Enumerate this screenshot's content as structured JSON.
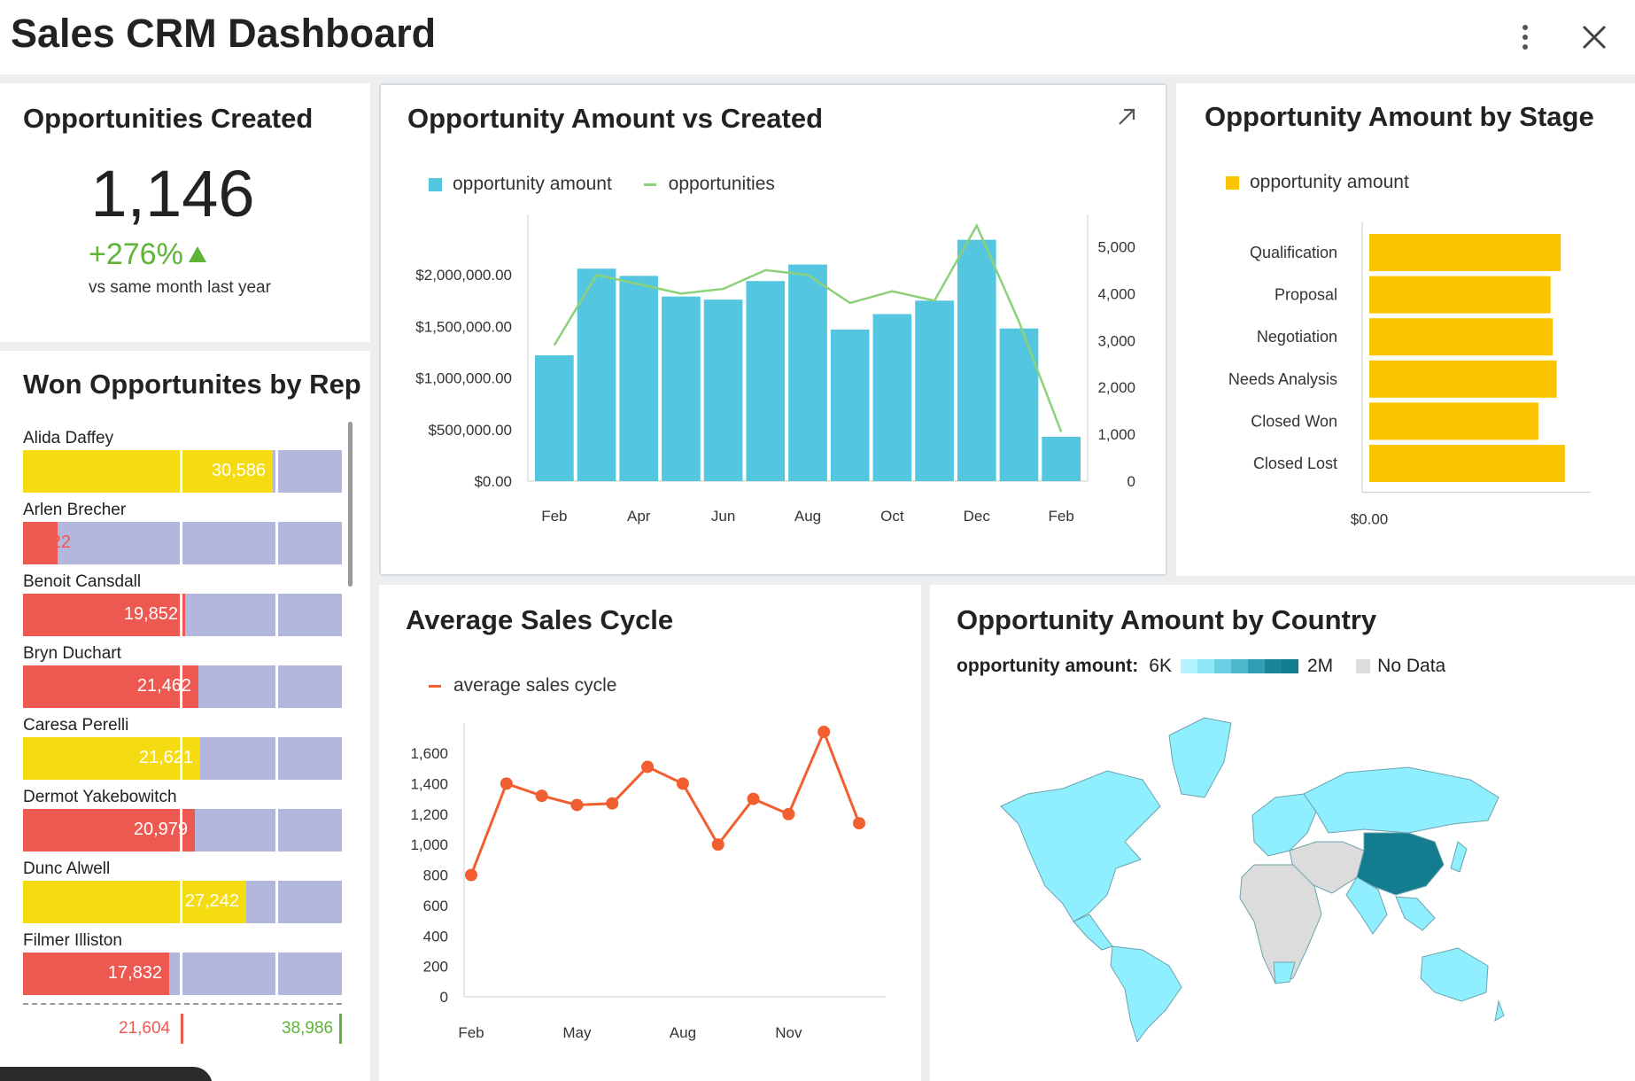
{
  "header": {
    "title": "Sales CRM Dashboard",
    "more_icon": "vertical-dots-icon",
    "close_icon": "close-icon"
  },
  "kpi": {
    "title": "Opportunities Created",
    "value": "1,146",
    "delta": "+276%",
    "note": "vs same month last year"
  },
  "reps": {
    "title": "Won Opportunites by Rep",
    "items": [
      {
        "name": "Alida Daffey",
        "label": "30,586",
        "value": 30586,
        "color": "#f5dc12"
      },
      {
        "name": "Arlen Brecher",
        "label": "4,222",
        "value": 4222,
        "color": "#ed5951"
      },
      {
        "name": "Benoit Cansdall",
        "label": "19,852",
        "value": 19852,
        "color": "#ed5951"
      },
      {
        "name": "Bryn Duchart",
        "label": "21,462",
        "value": 21462,
        "color": "#ed5951"
      },
      {
        "name": "Caresa Perelli",
        "label": "21,621",
        "value": 21621,
        "color": "#f5dc12"
      },
      {
        "name": "Dermot Yakebowitch",
        "label": "20,979",
        "value": 20979,
        "color": "#ed5951"
      },
      {
        "name": "Dunc Alwell",
        "label": "27,242",
        "value": 27242,
        "color": "#f5dc12"
      },
      {
        "name": "Filmer Illiston",
        "label": "17,832",
        "value": 17832,
        "color": "#ed5951"
      }
    ],
    "footer_low": "21,604",
    "footer_high": "38,986"
  },
  "amount_vs_created": {
    "title": "Opportunity Amount vs Created",
    "expand_icon": "expand-arrow-icon",
    "legend_amount": "opportunity amount",
    "legend_count": "opportunities",
    "colors": {
      "bars": "#55c6e0",
      "line": "#8cd17a"
    }
  },
  "by_stage": {
    "title": "Opportunity Amount by Stage",
    "legend": "opportunity amount",
    "colors": {
      "bars": "#fac400"
    }
  },
  "sales_cycle": {
    "title": "Average Sales Cycle",
    "legend": "average sales cycle",
    "colors": {
      "line": "#f15e2f"
    }
  },
  "by_country": {
    "title": "Opportunity Amount by Country",
    "legend_label": "opportunity amount:",
    "min_label": "6K",
    "max_label": "2M",
    "nodata_label": "No Data",
    "colors": {
      "low": "#8fefff",
      "high": "#137c8e",
      "nodata": "#dcdcdc"
    }
  },
  "chart_data": [
    {
      "type": "bar",
      "subtype": "bar+line",
      "title": "Opportunity Amount vs Created",
      "x_tick_labels": [
        "Feb",
        "Apr",
        "Jun",
        "Aug",
        "Oct",
        "Dec",
        "Feb"
      ],
      "series": [
        {
          "name": "opportunity amount",
          "type": "bar",
          "axis": "left",
          "values": [
            1220000,
            2060000,
            1990000,
            1790000,
            1760000,
            1940000,
            2100000,
            1470000,
            1620000,
            1750000,
            2340000,
            1480000,
            430000
          ]
        },
        {
          "name": "opportunities",
          "type": "line",
          "axis": "right",
          "values": [
            2900,
            4400,
            4200,
            4000,
            4100,
            4500,
            4400,
            3800,
            4050,
            3850,
            5450,
            3400,
            1050
          ]
        }
      ],
      "y_left_ticks": [
        "$0.00",
        "$500,000.00",
        "$1,000,000.00",
        "$1,500,000.00",
        "$2,000,000.00"
      ],
      "y_left_lim": [
        0,
        2500000
      ],
      "y_right_ticks": [
        "0",
        "1,000",
        "2,000",
        "3,000",
        "4,000",
        "5,000"
      ],
      "y_right_lim": [
        0,
        5500
      ],
      "legend": "top-left"
    },
    {
      "type": "bar",
      "orientation": "horizontal",
      "title": "Opportunity Amount by Stage",
      "categories": [
        "Qualification",
        "Proposal",
        "Negotiation",
        "Needs Analysis",
        "Closed Won",
        "Closed Lost"
      ],
      "values": [
        0.94,
        0.89,
        0.9,
        0.92,
        0.83,
        0.96
      ],
      "x_tick_labels": [
        "$0.00"
      ],
      "xlim": [
        0,
        1
      ],
      "legend": "top-left"
    },
    {
      "type": "line",
      "title": "Average Sales Cycle",
      "x_tick_labels": [
        "Feb",
        "May",
        "Aug",
        "Nov"
      ],
      "series": [
        {
          "name": "average sales cycle",
          "values": [
            800,
            1400,
            1320,
            1260,
            1270,
            1510,
            1400,
            1000,
            1300,
            1200,
            1740,
            1140
          ]
        }
      ],
      "y_ticks": [
        "0",
        "200",
        "400",
        "600",
        "800",
        "1,000",
        "1,200",
        "1,400",
        "1,600"
      ],
      "ylim": [
        0,
        1700
      ],
      "legend": "top-left"
    }
  ]
}
